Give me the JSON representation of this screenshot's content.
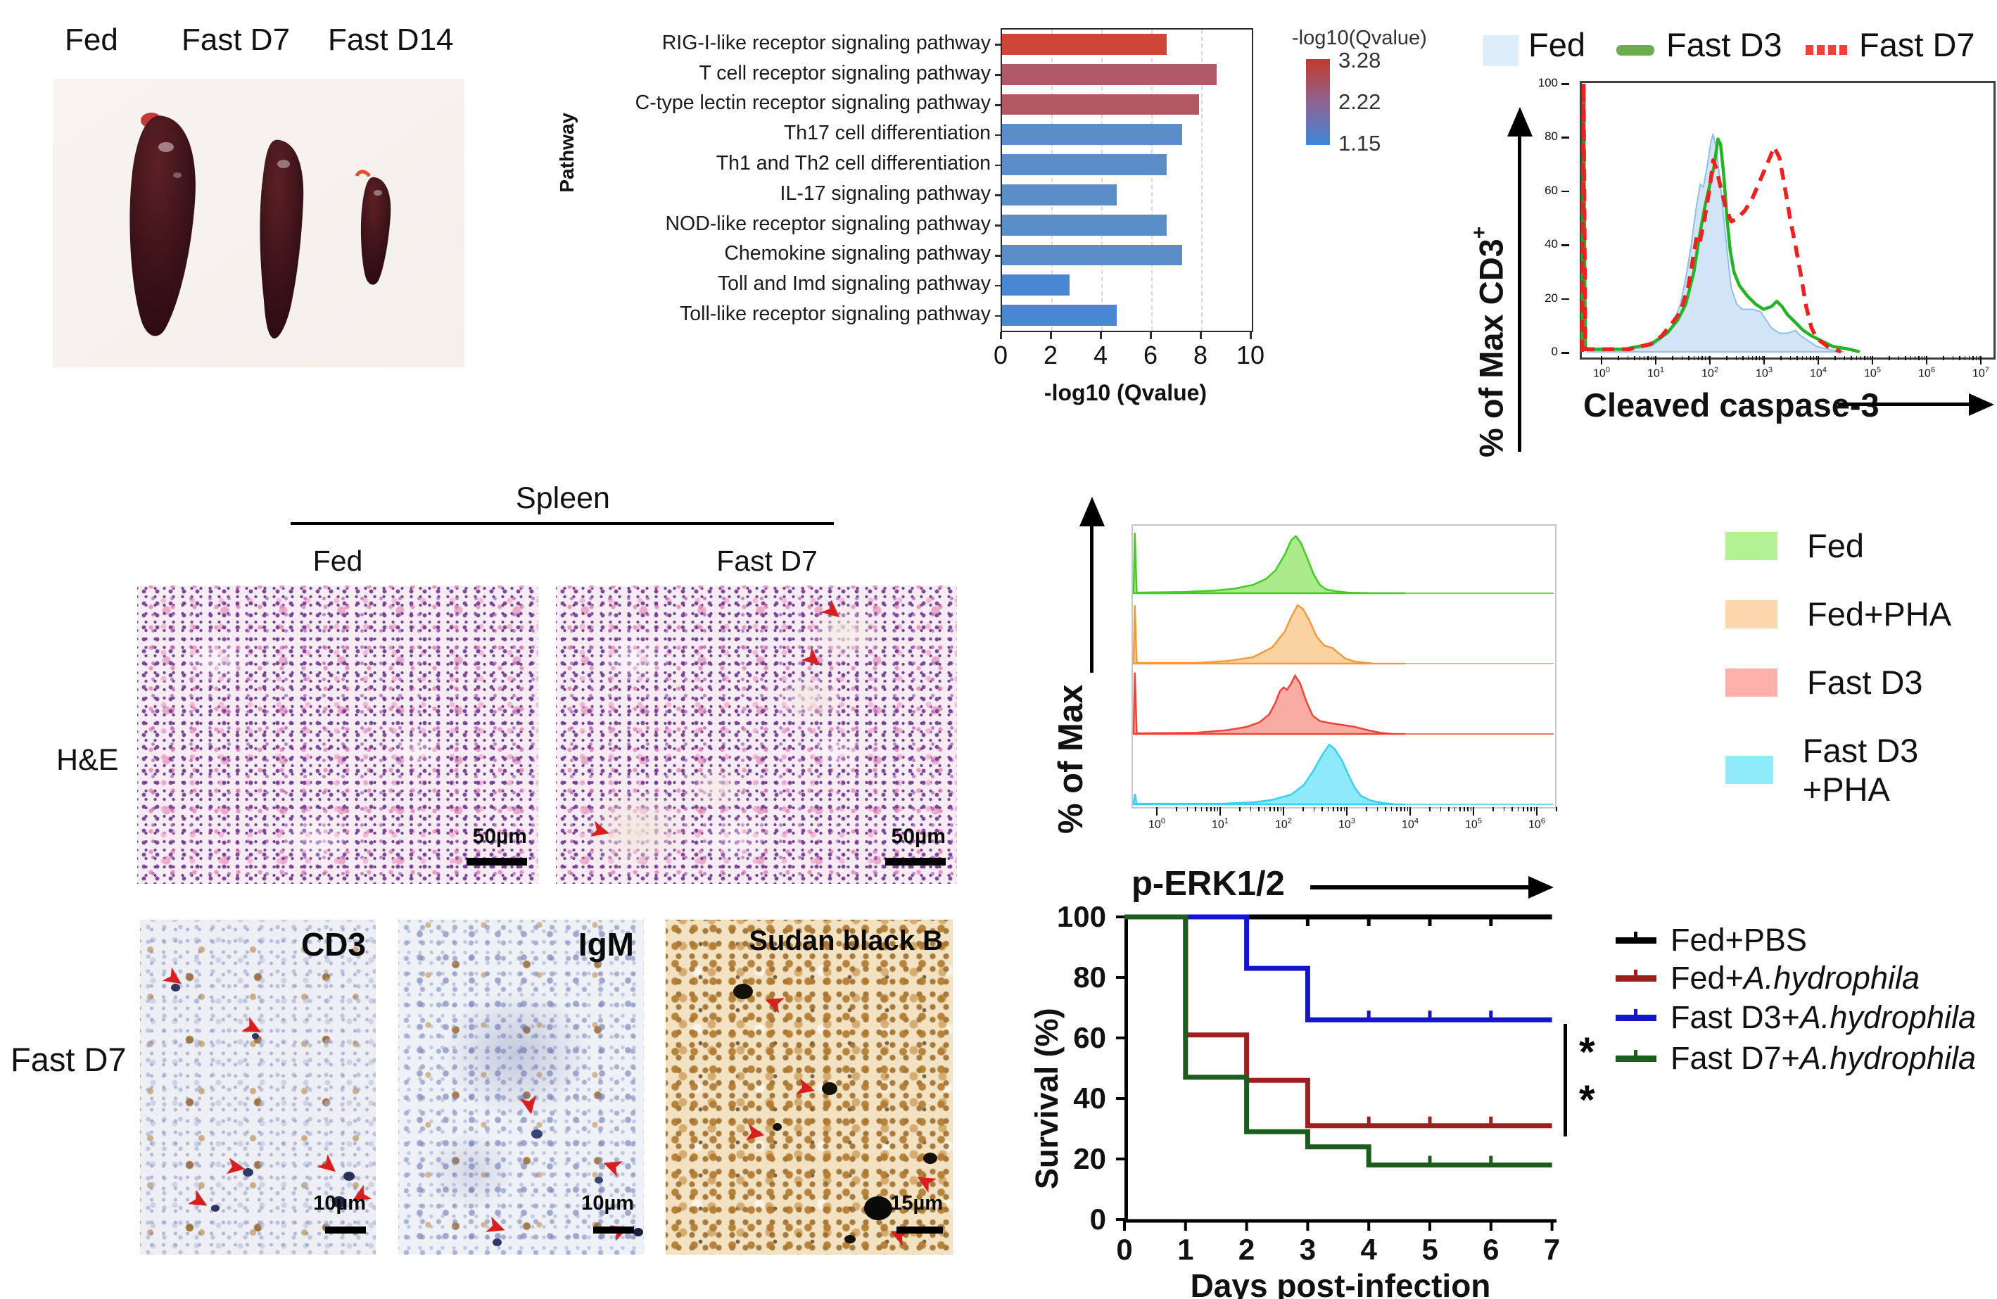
{
  "icons": {
    "arrow": "➤"
  },
  "panels": {
    "spleen_photo": {
      "labels": [
        "Fed",
        "Fast D7",
        "Fast D14"
      ]
    },
    "histology": {
      "title": "Spleen",
      "col_labels": [
        "Fed",
        "Fast D7"
      ],
      "row_label": "H&E",
      "scale_bar": "50µm"
    },
    "ihc": {
      "row_label": "Fast D7",
      "images": [
        {
          "label": "CD3",
          "scale": "10µm"
        },
        {
          "label": "IgM",
          "scale": "10µm"
        },
        {
          "label": "Sudan black B",
          "scale": "15µm"
        }
      ]
    }
  },
  "chart_data": [
    {
      "id": "pathway_enrichment",
      "type": "bar",
      "orientation": "horizontal",
      "categories": [
        "RIG-I-like receptor signaling pathway",
        "T cell receptor signaling pathway",
        "C-type lectin receptor signaling pathway",
        "Th17 cell differentiation",
        "Th1 and Th2 cell differentiation",
        "IL-17 signaling pathway",
        "NOD-like receptor signaling pathway",
        "Chemokine signaling pathway",
        "Toll and Imd signaling pathway",
        "Toll-like receptor signaling pathway"
      ],
      "values": [
        6.6,
        8.6,
        7.9,
        7.2,
        6.6,
        4.6,
        6.6,
        7.2,
        2.7,
        4.6
      ],
      "bar_colors": [
        "#cf4538",
        "#b05a68",
        "#b25862",
        "#5b8dc8",
        "#5b8dc8",
        "#5b8dc8",
        "#5b8dc8",
        "#5b8dc8",
        "#4a87d3",
        "#4a87d3"
      ],
      "xlabel": "-log10 (Qvalue)",
      "ylabel": "Pathway",
      "xlim": [
        0,
        10
      ],
      "xticks": [
        0,
        2,
        4,
        6,
        8,
        10
      ],
      "gridlines": [
        2,
        4,
        6,
        8
      ],
      "colorbar": {
        "title": "-log10(Qvalue)",
        "stops": [
          "3.28",
          "2.22",
          "1.15"
        ],
        "top_color": "#c23a2c",
        "mid_color": "#8e6492",
        "bottom_color": "#3f86d9"
      }
    },
    {
      "id": "cleaved_caspase3_histogram",
      "type": "area",
      "xlabel": "Cleaved caspase-3",
      "ylabel": "% of Max CD3",
      "ylabel_sup": "+",
      "yticks": [
        0,
        20,
        40,
        60,
        80,
        100
      ],
      "x_log_base": 10,
      "x_exponents": [
        0,
        7
      ],
      "legend": [
        {
          "label": "Fed",
          "color": "#dcecf9",
          "style": "fill"
        },
        {
          "label": "Fast D3",
          "color": "#6cab50",
          "style": "line"
        },
        {
          "label": "Fast D7",
          "color": "#f04038",
          "style": "dashed"
        }
      ],
      "series": [
        {
          "name": "Fed",
          "stroke": "#8abbe8",
          "fill": "#cfe4f7",
          "points": [
            [
              -0.3,
              0
            ],
            [
              0.5,
              1
            ],
            [
              0.9,
              2
            ],
            [
              1.1,
              5
            ],
            [
              1.3,
              10
            ],
            [
              1.45,
              18
            ],
            [
              1.55,
              28
            ],
            [
              1.65,
              40
            ],
            [
              1.75,
              55
            ],
            [
              1.82,
              63
            ],
            [
              1.88,
              62
            ],
            [
              1.95,
              70
            ],
            [
              2.02,
              79
            ],
            [
              2.06,
              82
            ],
            [
              2.12,
              76
            ],
            [
              2.18,
              66
            ],
            [
              2.25,
              52
            ],
            [
              2.32,
              38
            ],
            [
              2.4,
              24
            ],
            [
              2.5,
              18
            ],
            [
              2.6,
              16
            ],
            [
              2.8,
              16
            ],
            [
              2.95,
              15
            ],
            [
              3.05,
              12
            ],
            [
              3.15,
              9
            ],
            [
              3.3,
              7
            ],
            [
              3.45,
              7
            ],
            [
              3.6,
              8
            ],
            [
              3.7,
              6
            ],
            [
              3.85,
              4
            ],
            [
              4.0,
              2
            ],
            [
              4.2,
              1
            ],
            [
              4.5,
              0
            ]
          ]
        },
        {
          "name": "Fast D3",
          "stroke": "#24b324",
          "points": [
            [
              -0.39,
              0
            ],
            [
              -0.36,
              97
            ],
            [
              -0.33,
              1
            ],
            [
              0.4,
              1
            ],
            [
              0.9,
              3
            ],
            [
              1.2,
              7
            ],
            [
              1.4,
              12
            ],
            [
              1.55,
              18
            ],
            [
              1.7,
              30
            ],
            [
              1.8,
              43
            ],
            [
              1.9,
              54
            ],
            [
              2.0,
              63
            ],
            [
              2.08,
              70
            ],
            [
              2.15,
              80
            ],
            [
              2.2,
              78
            ],
            [
              2.26,
              66
            ],
            [
              2.32,
              50
            ],
            [
              2.38,
              38
            ],
            [
              2.45,
              30
            ],
            [
              2.55,
              25
            ],
            [
              2.7,
              21
            ],
            [
              2.85,
              18
            ],
            [
              3.0,
              16
            ],
            [
              3.15,
              17
            ],
            [
              3.25,
              19
            ],
            [
              3.35,
              17
            ],
            [
              3.45,
              14
            ],
            [
              3.6,
              11
            ],
            [
              3.75,
              8
            ],
            [
              3.9,
              6
            ],
            [
              4.1,
              4
            ],
            [
              4.3,
              2
            ],
            [
              4.6,
              1
            ],
            [
              4.8,
              0
            ]
          ]
        },
        {
          "name": "Fast D7",
          "stroke": "#ee2020",
          "points": [
            [
              -0.39,
              0
            ],
            [
              -0.36,
              101
            ],
            [
              -0.33,
              1
            ],
            [
              0.5,
              1
            ],
            [
              0.9,
              3
            ],
            [
              1.1,
              6
            ],
            [
              1.3,
              11
            ],
            [
              1.45,
              15
            ],
            [
              1.6,
              25
            ],
            [
              1.7,
              37
            ],
            [
              1.76,
              44
            ],
            [
              1.82,
              42
            ],
            [
              1.9,
              50
            ],
            [
              2.0,
              62
            ],
            [
              2.06,
              72
            ],
            [
              2.12,
              69
            ],
            [
              2.2,
              62
            ],
            [
              2.3,
              54
            ],
            [
              2.4,
              49
            ],
            [
              2.5,
              50
            ],
            [
              2.65,
              53
            ],
            [
              2.8,
              58
            ],
            [
              2.95,
              65
            ],
            [
              3.1,
              72
            ],
            [
              3.2,
              77
            ],
            [
              3.3,
              73
            ],
            [
              3.4,
              62
            ],
            [
              3.5,
              50
            ],
            [
              3.6,
              40
            ],
            [
              3.7,
              29
            ],
            [
              3.8,
              17
            ],
            [
              3.9,
              9
            ],
            [
              4.0,
              5
            ],
            [
              4.2,
              2
            ],
            [
              4.45,
              0
            ]
          ]
        }
      ]
    },
    {
      "id": "perk_stacked_histograms",
      "type": "area",
      "xlabel": "p-ERK1/2",
      "ylabel": "% of Max",
      "x_log_base": 10,
      "x_exponents": [
        0,
        6
      ],
      "legend": [
        {
          "label": "Fed",
          "color": "#b2f295"
        },
        {
          "label": "Fed+PHA",
          "color": "#fcd6ac"
        },
        {
          "label": "Fast D3",
          "color": "#fcb2aa"
        },
        {
          "label": "Fast D3 +PHA",
          "color": "#8feaf9"
        }
      ],
      "series": [
        {
          "name": "Fed",
          "stroke": "#44cc22",
          "fill": "#aceb8d",
          "points": [
            [
              -0.39,
              0
            ],
            [
              -0.37,
              0.93
            ],
            [
              -0.34,
              0.01
            ],
            [
              0.4,
              0.02
            ],
            [
              0.9,
              0.04
            ],
            [
              1.2,
              0.07
            ],
            [
              1.5,
              0.13
            ],
            [
              1.7,
              0.22
            ],
            [
              1.85,
              0.35
            ],
            [
              2.0,
              0.6
            ],
            [
              2.1,
              0.82
            ],
            [
              2.17,
              0.88
            ],
            [
              2.25,
              0.78
            ],
            [
              2.35,
              0.55
            ],
            [
              2.45,
              0.3
            ],
            [
              2.55,
              0.13
            ],
            [
              2.65,
              0.06
            ],
            [
              2.8,
              0.03
            ],
            [
              3.0,
              0.01
            ],
            [
              3.4,
              0
            ]
          ]
        },
        {
          "name": "Fed+PHA",
          "stroke": "#f59a38",
          "fill": "#fad3a2",
          "points": [
            [
              -0.39,
              0
            ],
            [
              -0.37,
              0.9
            ],
            [
              -0.34,
              0.01
            ],
            [
              0.6,
              0.01
            ],
            [
              1.1,
              0.04
            ],
            [
              1.5,
              0.1
            ],
            [
              1.8,
              0.25
            ],
            [
              2.0,
              0.5
            ],
            [
              2.1,
              0.72
            ],
            [
              2.2,
              0.9
            ],
            [
              2.28,
              0.85
            ],
            [
              2.38,
              0.68
            ],
            [
              2.5,
              0.42
            ],
            [
              2.62,
              0.28
            ],
            [
              2.75,
              0.24
            ],
            [
              2.85,
              0.16
            ],
            [
              2.95,
              0.08
            ],
            [
              3.1,
              0.03
            ],
            [
              3.4,
              0
            ]
          ]
        },
        {
          "name": "Fast D3",
          "stroke": "#f04438",
          "fill": "#f8aca4",
          "points": [
            [
              -0.39,
              0
            ],
            [
              -0.37,
              0.95
            ],
            [
              -0.34,
              0.01
            ],
            [
              0.6,
              0.02
            ],
            [
              1.1,
              0.06
            ],
            [
              1.4,
              0.11
            ],
            [
              1.6,
              0.18
            ],
            [
              1.75,
              0.3
            ],
            [
              1.85,
              0.48
            ],
            [
              1.92,
              0.66
            ],
            [
              1.98,
              0.72
            ],
            [
              2.03,
              0.68
            ],
            [
              2.1,
              0.78
            ],
            [
              2.16,
              0.9
            ],
            [
              2.24,
              0.78
            ],
            [
              2.34,
              0.5
            ],
            [
              2.44,
              0.28
            ],
            [
              2.55,
              0.2
            ],
            [
              2.7,
              0.17
            ],
            [
              2.9,
              0.14
            ],
            [
              3.1,
              0.11
            ],
            [
              3.3,
              0.06
            ],
            [
              3.5,
              0.02
            ],
            [
              3.7,
              0
            ]
          ]
        },
        {
          "name": "Fast D3 +PHA",
          "stroke": "#38d0f0",
          "fill": "#8ee9fa",
          "points": [
            [
              -0.39,
              0
            ],
            [
              -0.37,
              0.16
            ],
            [
              -0.34,
              0.01
            ],
            [
              1.0,
              0.01
            ],
            [
              1.5,
              0.03
            ],
            [
              1.8,
              0.07
            ],
            [
              2.1,
              0.15
            ],
            [
              2.3,
              0.3
            ],
            [
              2.45,
              0.52
            ],
            [
              2.6,
              0.78
            ],
            [
              2.7,
              0.92
            ],
            [
              2.78,
              0.86
            ],
            [
              2.9,
              0.68
            ],
            [
              3.0,
              0.46
            ],
            [
              3.1,
              0.26
            ],
            [
              3.2,
              0.13
            ],
            [
              3.35,
              0.06
            ],
            [
              3.55,
              0.02
            ],
            [
              3.75,
              0
            ]
          ]
        }
      ]
    },
    {
      "id": "survival_curve",
      "type": "line",
      "xlabel": "Days post-infection",
      "ylabel": "Survival (%)",
      "xticks": [
        0,
        1,
        2,
        3,
        4,
        5,
        6,
        7
      ],
      "yticks": [
        0,
        20,
        40,
        60,
        80,
        100
      ],
      "ylim": [
        0,
        100
      ],
      "xlim": [
        0,
        7
      ],
      "significance": [
        "*",
        "*"
      ],
      "series": [
        {
          "label_prefix": "Fed+PBS",
          "label_italic": "",
          "color": "#000000",
          "steps": [
            [
              0,
              100
            ],
            [
              7,
              100
            ]
          ],
          "censors": [
            1,
            2,
            3,
            4,
            5,
            6
          ],
          "censor_dir": 1
        },
        {
          "label_prefix": "Fed+",
          "label_italic": "A.hydrophila",
          "color": "#9e1f1d",
          "steps": [
            [
              0,
              100
            ],
            [
              1,
              100
            ],
            [
              1,
              61
            ],
            [
              2,
              61
            ],
            [
              2,
              46
            ],
            [
              3,
              46
            ],
            [
              3,
              31
            ],
            [
              7,
              31
            ]
          ],
          "censors": [
            4,
            5,
            6
          ],
          "censor_dir": -1
        },
        {
          "label_prefix": "Fast D3+",
          "label_italic": "A.hydrophila",
          "color": "#1414c8",
          "steps": [
            [
              0,
              100
            ],
            [
              2,
              100
            ],
            [
              2,
              83
            ],
            [
              3,
              83
            ],
            [
              3,
              66
            ],
            [
              7,
              66
            ]
          ],
          "censors": [
            4,
            5,
            6
          ],
          "censor_dir": -1
        },
        {
          "label_prefix": "Fast D7+",
          "label_italic": "A.hydrophila",
          "color": "#1c5c1e",
          "steps": [
            [
              0,
              100
            ],
            [
              1,
              100
            ],
            [
              1,
              47
            ],
            [
              2,
              47
            ],
            [
              2,
              29
            ],
            [
              3,
              29
            ],
            [
              3,
              24
            ],
            [
              4,
              24
            ],
            [
              4,
              18
            ],
            [
              7,
              18
            ]
          ],
          "censors": [
            5,
            6
          ],
          "censor_dir": -1
        }
      ]
    }
  ]
}
